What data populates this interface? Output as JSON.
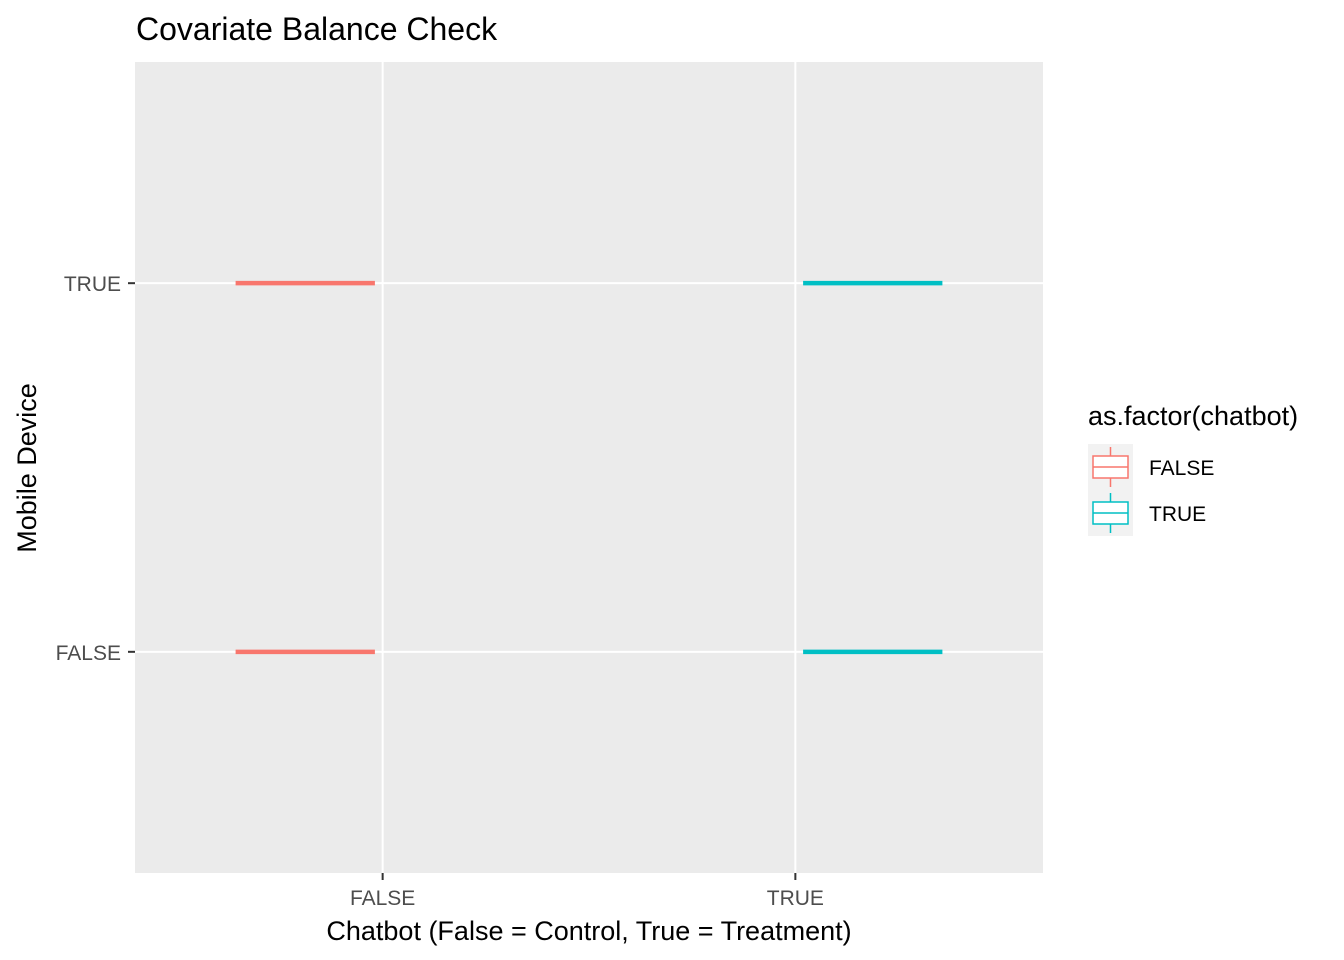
{
  "chart_data": {
    "type": "boxplot",
    "title": "Covariate Balance Check",
    "xlabel": "Chatbot (False = Control, True = Treatment)",
    "ylabel": "Mobile Device",
    "x_categories": [
      "FALSE",
      "TRUE"
    ],
    "y_categories": [
      "FALSE",
      "TRUE"
    ],
    "legend": {
      "title": "as.factor(chatbot)",
      "placement": "right",
      "entries": [
        {
          "label": "FALSE",
          "color": "#F8766D"
        },
        {
          "label": "TRUE",
          "color": "#00BFC4"
        }
      ]
    },
    "series": [
      {
        "name": "FALSE",
        "color": "#F8766D",
        "boxes": [
          {
            "x": "FALSE",
            "y": "FALSE"
          },
          {
            "x": "FALSE",
            "y": "TRUE"
          }
        ]
      },
      {
        "name": "TRUE",
        "color": "#00BFC4",
        "boxes": [
          {
            "x": "TRUE",
            "y": "FALSE"
          },
          {
            "x": "TRUE",
            "y": "TRUE"
          }
        ]
      }
    ],
    "panel_background": "#EBEBEB",
    "grid_color": "#FFFFFF",
    "grid": true
  }
}
